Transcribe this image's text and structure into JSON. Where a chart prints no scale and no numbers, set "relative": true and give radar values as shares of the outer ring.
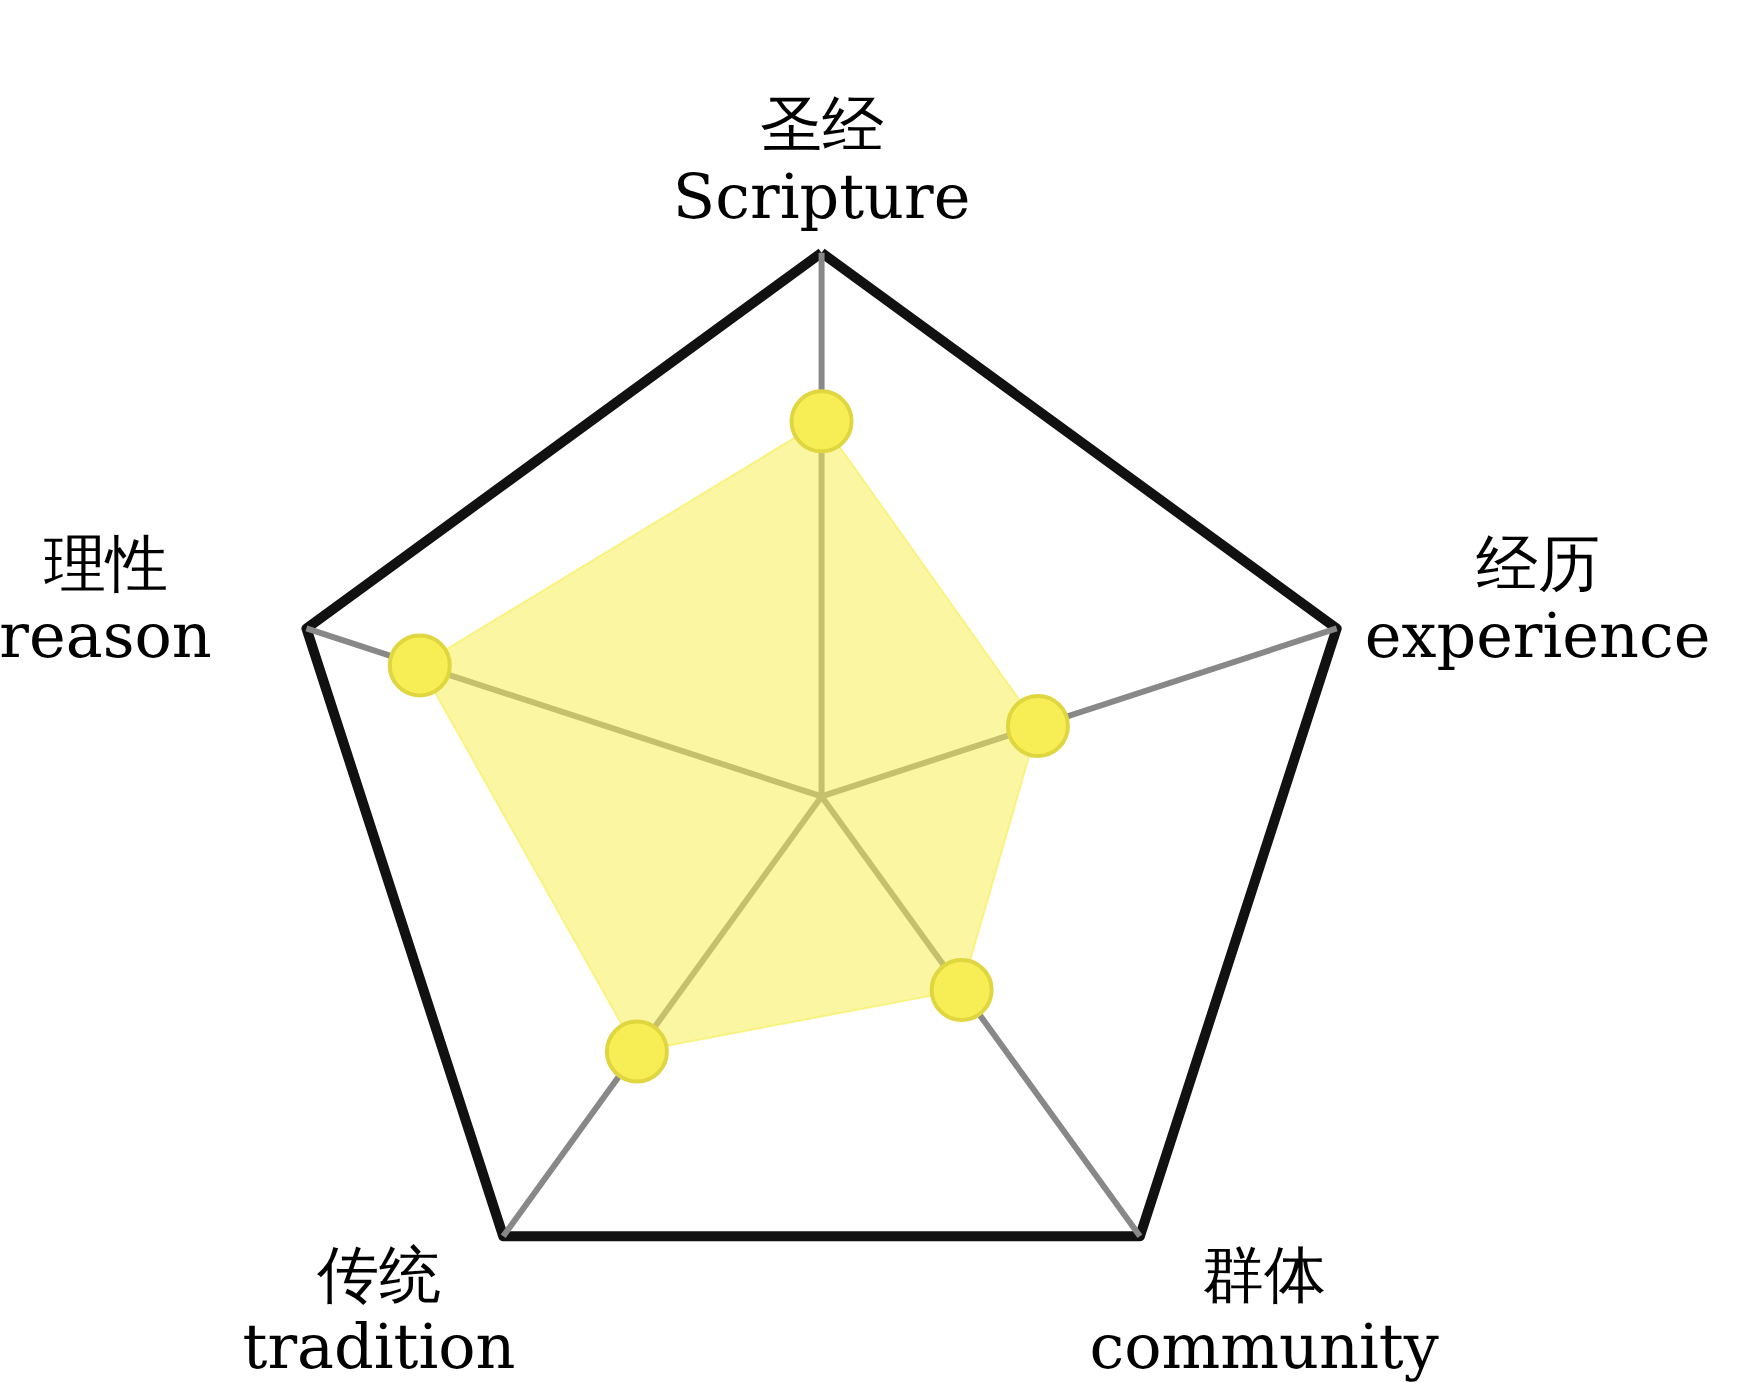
{
  "chart_data": {
    "type": "radar",
    "relative": true,
    "marker": "circle",
    "categories": [
      "圣经\nScripture",
      "经历\nexperience",
      "群体\ncommunity",
      "传统\ntradition",
      "理性\nreason"
    ],
    "series": [
      {
        "color": "#f7ee55",
        "values": [
          0.69,
          0.42,
          0.44,
          0.58,
          0.78
        ]
      }
    ]
  }
}
